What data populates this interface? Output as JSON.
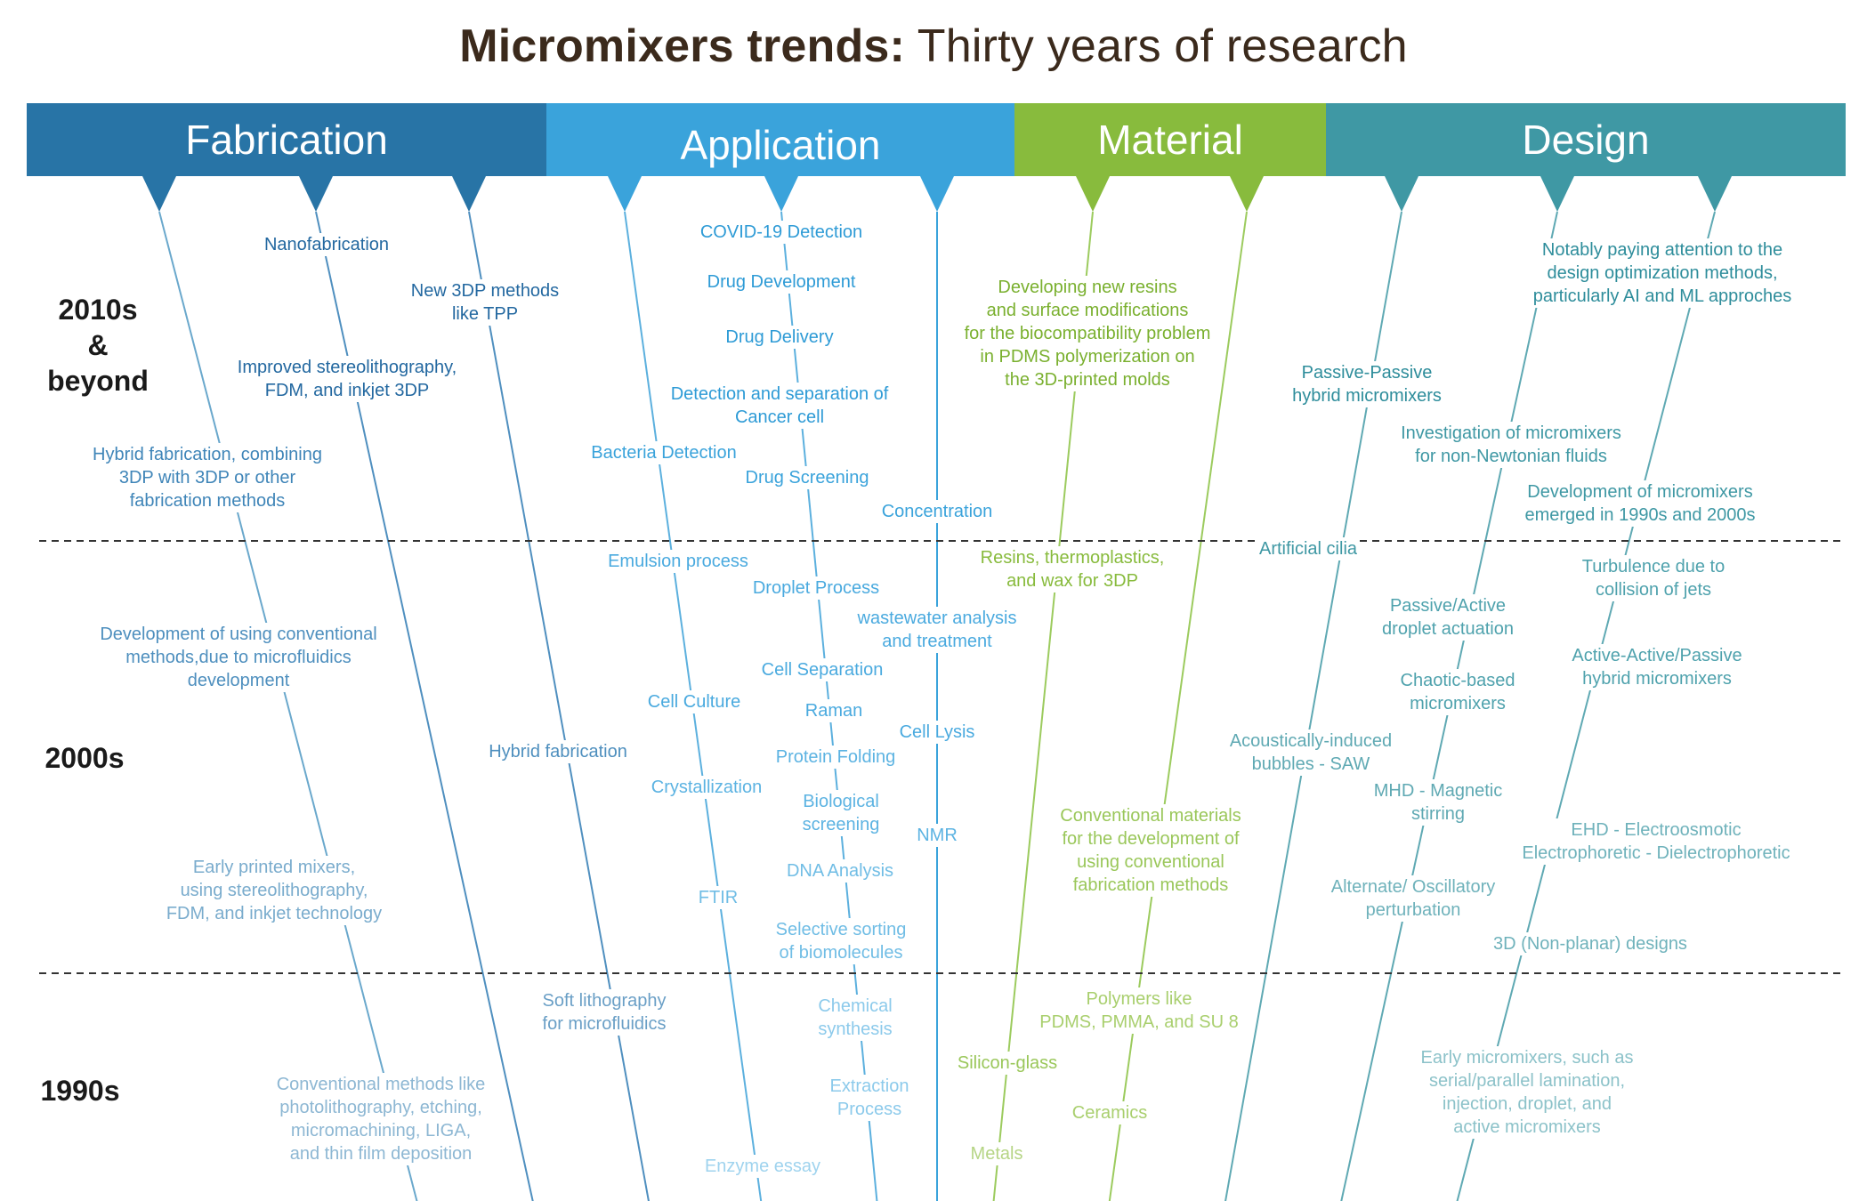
{
  "title": {
    "bold": "Micromixers trends:",
    "rest": " Thirty years of research"
  },
  "categories": [
    {
      "key": "fabrication",
      "label": "Fabrication",
      "color": "#2874a6"
    },
    {
      "key": "application",
      "label": "Application",
      "color": "#3aa3db"
    },
    {
      "key": "material",
      "label": "Material",
      "color": "#88bb3d"
    },
    {
      "key": "design",
      "label": "Design",
      "color": "#3f98a4"
    }
  ],
  "eras": {
    "recent": [
      "2010s",
      "&",
      "beyond"
    ],
    "mid": "2000s",
    "early": "1990s"
  },
  "fabrication": {
    "nanofab": "Nanofabrication",
    "new3dp": [
      "New 3DP methods",
      "like TPP"
    ],
    "improved": [
      "Improved stereolithography,",
      "FDM, and inkjet 3DP"
    ],
    "hybrid_comb": [
      "Hybrid fabrication, combining",
      "3DP with 3DP or other",
      "fabrication methods"
    ],
    "dev_conv": [
      "Development of using conventional",
      "methods,due to microfluidics",
      "development"
    ],
    "hybrid": "Hybrid fabrication",
    "early_printed": [
      "Early printed mixers,",
      "using stereolithography,",
      "FDM, and inkjet technology"
    ],
    "soft_litho": [
      "Soft lithography",
      "for microfluidics"
    ],
    "conv_methods": [
      "Conventional methods like",
      "photolithography, etching,",
      "micromachining, LIGA,",
      "and thin film deposition"
    ]
  },
  "application": {
    "covid": "COVID-19 Detection",
    "drug_dev": "Drug Development",
    "drug_del": "Drug Delivery",
    "cancer": [
      "Detection and separation of",
      "Cancer cell"
    ],
    "bacteria": "Bacteria Detection",
    "drug_screen": "Drug Screening",
    "concentration": "Concentration",
    "emulsion": "Emulsion process",
    "droplet": "Droplet Process",
    "wastewater": [
      "wastewater analysis",
      "and treatment"
    ],
    "cell_sep": "Cell Separation",
    "cell_culture": "Cell Culture",
    "raman": "Raman",
    "cell_lysis": "Cell Lysis",
    "protein": "Protein Folding",
    "crystal": "Crystallization",
    "bio_screen": [
      "Biological",
      "screening"
    ],
    "nmr": "NMR",
    "dna": "DNA Analysis",
    "ftir": "FTIR",
    "selective": [
      "Selective sorting",
      "of biomolecules"
    ],
    "chemical": [
      "Chemical",
      "synthesis"
    ],
    "extraction": [
      "Extraction",
      "Process"
    ],
    "enzyme": "Enzyme essay"
  },
  "material": {
    "new_resins": [
      "Developing new resins",
      "and surface modifications",
      "for the biocompatibility problem",
      "in PDMS polymerization on",
      "the 3D-printed molds"
    ],
    "resins_3dp": [
      "Resins, thermoplastics,",
      "and wax for 3DP"
    ],
    "conv_mat": [
      "Conventional materials",
      "for the development of",
      "using conventional",
      "fabrication methods"
    ],
    "polymers": [
      "Polymers like",
      "PDMS, PMMA, and SU 8"
    ],
    "silicon": "Silicon-glass",
    "ceramics": "Ceramics",
    "metals": "Metals"
  },
  "design": {
    "ai_ml": [
      "Notably paying attention to the",
      "design optimization methods,",
      "particularly AI and ML approches"
    ],
    "pp_hybrid": [
      "Passive-Passive",
      "hybrid micromixers"
    ],
    "non_newton": [
      "Investigation of micromixers",
      "for non-Newtonian fluids"
    ],
    "dev_90s": [
      "Development of micromixers",
      "emerged in 1990s and 2000s"
    ],
    "cilia": "Artificial cilia",
    "turbulence": [
      "Turbulence due to",
      "collision of jets"
    ],
    "pa_droplet": [
      "Passive/Active",
      "droplet actuation"
    ],
    "aa_hybrid": [
      "Active-Active/Passive",
      "hybrid micromixers"
    ],
    "chaotic": [
      "Chaotic-based",
      "micromixers"
    ],
    "saw": [
      "Acoustically-induced",
      "bubbles - SAW"
    ],
    "mhd": [
      "MHD - Magnetic",
      "stirring"
    ],
    "ehd": [
      "EHD - Electroosmotic",
      "Electrophoretic - Dielectrophoretic"
    ],
    "alternate": [
      "Alternate/ Oscillatory",
      "perturbation"
    ],
    "nonplanar": "3D (Non-planar) designs",
    "early": [
      "Early micromixers, such as",
      "serial/parallel lamination,",
      "injection, droplet, and",
      "active micromixers"
    ]
  }
}
